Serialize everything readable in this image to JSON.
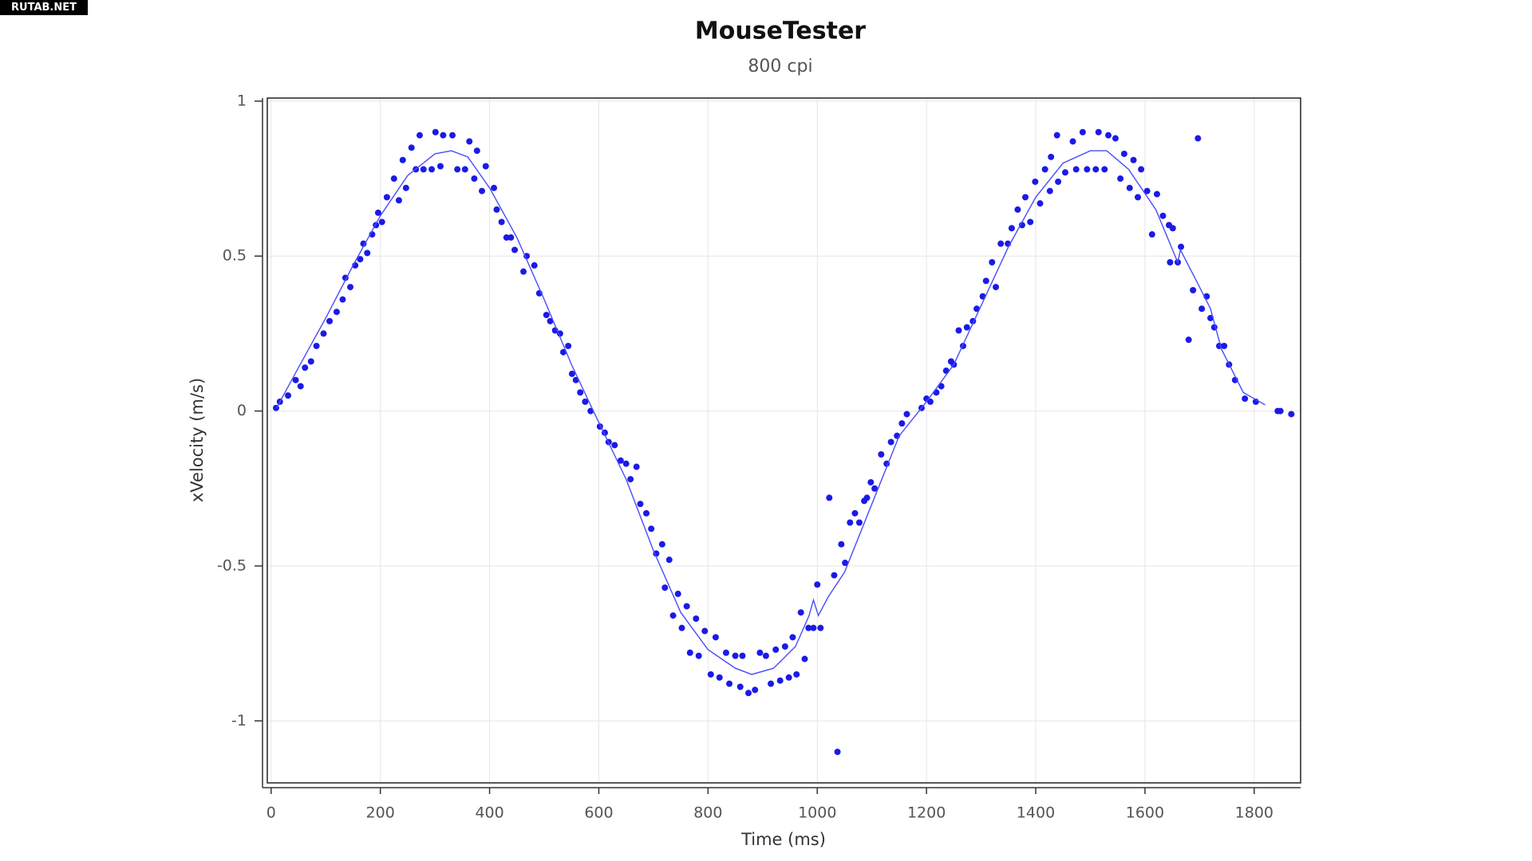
{
  "watermark": "RUTAB.NET",
  "chart_data": {
    "type": "scatter",
    "title": "MouseTester",
    "subtitle": "800 cpi",
    "x_label": "Time (ms)",
    "y_label": "xVelocity (m/s)",
    "xlim": [
      -7,
      1885
    ],
    "ylim": [
      -1.2,
      1.01
    ],
    "xticks": [
      0,
      200,
      400,
      600,
      800,
      1000,
      1200,
      1400,
      1600,
      1800
    ],
    "yticks": [
      -1,
      -0.5,
      0,
      0.5,
      1
    ],
    "grid": true,
    "series": [
      {
        "mode": "markers",
        "color": "#1a1ae8",
        "x": [
          9,
          16,
          31,
          45,
          54,
          62,
          73,
          83,
          96,
          107,
          120,
          131,
          136,
          145,
          154,
          163,
          169,
          176,
          185,
          192,
          196,
          203,
          212,
          225,
          234,
          241,
          247,
          257,
          265,
          272,
          279,
          294,
          301,
          310,
          315,
          332,
          341,
          355,
          363,
          372,
          377,
          386,
          393,
          408,
          413,
          422,
          431,
          439,
          446,
          462,
          468,
          482,
          491,
          504,
          511,
          520,
          529,
          535,
          544,
          551,
          558,
          566,
          575,
          585,
          602,
          611,
          618,
          629,
          640,
          650,
          669,
          658,
          676,
          687,
          696,
          705,
          716,
          721,
          729,
          736,
          745,
          752,
          761,
          767,
          778,
          783,
          794,
          805,
          814,
          821,
          833,
          839,
          850,
          859,
          863,
          874,
          886,
          895,
          906,
          915,
          924,
          932,
          941,
          948,
          955,
          962,
          970,
          977,
          984,
          1000,
          993,
          1006,
          1022,
          1031,
          1037,
          1044,
          1051,
          1060,
          1069,
          1077,
          1086,
          1091,
          1098,
          1105,
          1117,
          1127,
          1135,
          1146,
          1155,
          1164,
          1191,
          1200,
          1207,
          1218,
          1227,
          1236,
          1245,
          1250,
          1259,
          1267,
          1274,
          1285,
          1292,
          1303,
          1309,
          1320,
          1327,
          1336,
          1349,
          1356,
          1367,
          1375,
          1381,
          1390,
          1399,
          1408,
          1417,
          1426,
          1428,
          1439,
          1441,
          1454,
          1468,
          1474,
          1486,
          1494,
          1510,
          1515,
          1526,
          1533,
          1546,
          1555,
          1562,
          1572,
          1579,
          1587,
          1593,
          1604,
          1613,
          1622,
          1633,
          1644,
          1651,
          1646,
          1660,
          1666,
          1680,
          1688,
          1697,
          1704,
          1713,
          1720,
          1727,
          1736,
          1745,
          1754,
          1765,
          1783,
          1803,
          1843,
          1848,
          1868
        ],
        "values": [
          0.01,
          0.03,
          0.05,
          0.1,
          0.08,
          0.14,
          0.16,
          0.21,
          0.25,
          0.29,
          0.32,
          0.36,
          0.43,
          0.4,
          0.47,
          0.49,
          0.54,
          0.51,
          0.57,
          0.6,
          0.64,
          0.61,
          0.69,
          0.75,
          0.68,
          0.81,
          0.72,
          0.85,
          0.78,
          0.89,
          0.78,
          0.78,
          0.9,
          0.79,
          0.89,
          0.89,
          0.78,
          0.78,
          0.87,
          0.75,
          0.84,
          0.71,
          0.79,
          0.72,
          0.65,
          0.61,
          0.56,
          0.56,
          0.52,
          0.45,
          0.5,
          0.47,
          0.38,
          0.31,
          0.29,
          0.26,
          0.25,
          0.19,
          0.21,
          0.12,
          0.1,
          0.06,
          0.03,
          0.0,
          -0.05,
          -0.07,
          -0.1,
          -0.11,
          -0.16,
          -0.17,
          -0.18,
          -0.22,
          -0.3,
          -0.33,
          -0.38,
          -0.46,
          -0.43,
          -0.57,
          -0.48,
          -0.66,
          -0.59,
          -0.7,
          -0.63,
          -0.78,
          -0.67,
          -0.79,
          -0.71,
          -0.85,
          -0.73,
          -0.86,
          -0.78,
          -0.88,
          -0.79,
          -0.89,
          -0.79,
          -0.91,
          -0.9,
          -0.78,
          -0.79,
          -0.88,
          -0.77,
          -0.87,
          -0.76,
          -0.86,
          -0.73,
          -0.85,
          -0.65,
          -0.8,
          -0.7,
          -0.56,
          -0.7,
          -0.7,
          -0.28,
          -0.53,
          -1.1,
          -0.43,
          -0.49,
          -0.36,
          -0.33,
          -0.36,
          -0.29,
          -0.28,
          -0.23,
          -0.25,
          -0.14,
          -0.17,
          -0.1,
          -0.08,
          -0.04,
          -0.01,
          0.01,
          0.04,
          0.03,
          0.06,
          0.08,
          0.13,
          0.16,
          0.15,
          0.26,
          0.21,
          0.27,
          0.29,
          0.33,
          0.37,
          0.42,
          0.48,
          0.4,
          0.54,
          0.54,
          0.59,
          0.65,
          0.6,
          0.69,
          0.61,
          0.74,
          0.67,
          0.78,
          0.71,
          0.82,
          0.89,
          0.74,
          0.77,
          0.87,
          0.78,
          0.9,
          0.78,
          0.78,
          0.9,
          0.78,
          0.89,
          0.88,
          0.75,
          0.83,
          0.72,
          0.81,
          0.69,
          0.78,
          0.71,
          0.57,
          0.7,
          0.63,
          0.6,
          0.59,
          0.48,
          0.48,
          0.53,
          0.23,
          0.39,
          0.88,
          0.33,
          0.37,
          0.3,
          0.27,
          0.21,
          0.21,
          0.15,
          0.1,
          0.04,
          0.03,
          0.0,
          0.0,
          -0.01
        ]
      },
      {
        "mode": "line",
        "color": "#4a4aff",
        "x": [
          10,
          50,
          100,
          150,
          200,
          250,
          300,
          330,
          360,
          400,
          450,
          500,
          550,
          590,
          650,
          700,
          750,
          800,
          850,
          880,
          920,
          960,
          985,
          993,
          1002,
          1020,
          1050,
          1100,
          1150,
          1200,
          1250,
          1300,
          1350,
          1400,
          1450,
          1500,
          1530,
          1570,
          1620,
          1660,
          1665,
          1700,
          1720,
          1740,
          1780,
          1820
        ],
        "values": [
          0.01,
          0.14,
          0.3,
          0.47,
          0.63,
          0.76,
          0.83,
          0.84,
          0.82,
          0.72,
          0.56,
          0.36,
          0.15,
          0.0,
          -0.22,
          -0.45,
          -0.65,
          -0.77,
          -0.83,
          -0.85,
          -0.83,
          -0.76,
          -0.66,
          -0.61,
          -0.66,
          -0.6,
          -0.52,
          -0.3,
          -0.08,
          0.03,
          0.15,
          0.34,
          0.53,
          0.69,
          0.8,
          0.84,
          0.84,
          0.78,
          0.65,
          0.48,
          0.52,
          0.4,
          0.33,
          0.2,
          0.06,
          0.02
        ]
      }
    ]
  }
}
